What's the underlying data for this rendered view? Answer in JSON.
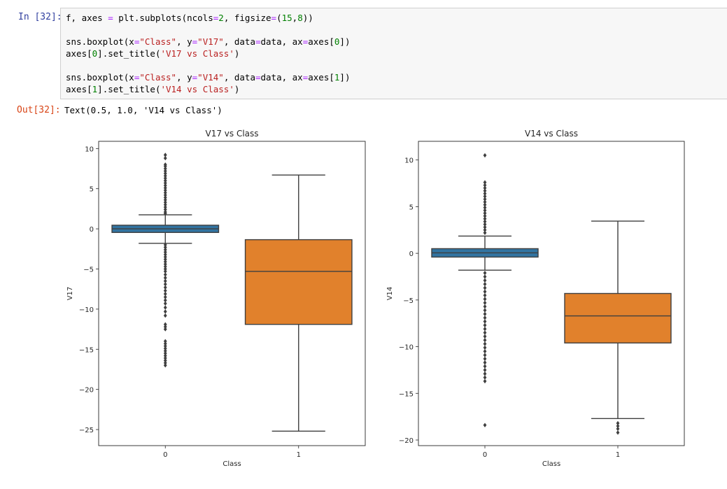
{
  "cell": {
    "in_prompt": "In [32]:",
    "out_prompt": "Out[32]:",
    "code_lines": [
      "f, axes = plt.subplots(ncols=2, figsize=(15,8))",
      "",
      "sns.boxplot(x=\"Class\", y=\"V17\", data=data, ax=axes[0])",
      "axes[0].set_title('V17 vs Class')",
      "",
      "sns.boxplot(x=\"Class\", y=\"V14\", data=data, ax=axes[1])",
      "axes[1].set_title('V14 vs Class')"
    ],
    "output_text": "Text(0.5, 1.0, 'V14 vs Class')"
  },
  "colors": {
    "class0": "#3274a1",
    "class1": "#e1812c",
    "line": "#3f3f3f"
  },
  "chart_data": [
    {
      "type": "box",
      "title": "V17 vs Class",
      "xlabel": "Class",
      "ylabel": "V17",
      "categories": [
        "0",
        "1"
      ],
      "ylim": [
        -27,
        10.9
      ],
      "yticks": [
        10,
        5,
        0,
        -5,
        -10,
        -15,
        -20,
        -25
      ],
      "ytick_labels": [
        "10",
        "5",
        "0",
        "−5",
        "−10",
        "−15",
        "−20",
        "−25"
      ],
      "boxes": [
        {
          "category": "0",
          "whisker_low": -1.8,
          "q1": -0.45,
          "median": 0.0,
          "q3": 0.45,
          "whisker_high": 1.75,
          "outliers": [
            9.2,
            8.8,
            8.0,
            7.8,
            7.5,
            7.2,
            6.9,
            6.6,
            6.3,
            6.0,
            5.7,
            5.4,
            5.1,
            4.8,
            4.5,
            4.2,
            3.9,
            3.6,
            3.3,
            3.0,
            2.7,
            2.4,
            2.1,
            1.9,
            -2.0,
            -2.3,
            -2.6,
            -2.9,
            -3.2,
            -3.5,
            -3.8,
            -4.1,
            -4.4,
            -4.7,
            -5.0,
            -5.3,
            -5.7,
            -6.1,
            -6.5,
            -6.9,
            -7.3,
            -7.7,
            -8.1,
            -8.5,
            -8.9,
            -9.3,
            -9.8,
            -10.3,
            -10.8,
            -11.9,
            -12.2,
            -12.5,
            -14.0,
            -14.3,
            -14.6,
            -14.9,
            -15.2,
            -15.5,
            -15.8,
            -16.1,
            -16.4,
            -16.7,
            -17.0
          ]
        },
        {
          "category": "1",
          "whisker_low": -25.2,
          "q1": -11.9,
          "median": -5.3,
          "q3": -1.35,
          "whisker_high": 6.7,
          "outliers": []
        }
      ]
    },
    {
      "type": "box",
      "title": "V14 vs Class",
      "xlabel": "Class",
      "ylabel": "V14",
      "categories": [
        "0",
        "1"
      ],
      "ylim": [
        -20.6,
        12.0
      ],
      "yticks": [
        10,
        5,
        0,
        -5,
        -10,
        -15,
        -20
      ],
      "ytick_labels": [
        "10",
        "5",
        "0",
        "−5",
        "−10",
        "−15",
        "−20"
      ],
      "boxes": [
        {
          "category": "0",
          "whisker_low": -1.8,
          "q1": -0.4,
          "median": 0.05,
          "q3": 0.5,
          "whisker_high": 1.85,
          "outliers": [
            10.5,
            7.6,
            7.3,
            7.0,
            6.7,
            6.4,
            6.1,
            5.8,
            5.5,
            5.2,
            4.9,
            4.6,
            4.3,
            4.0,
            3.7,
            3.4,
            3.1,
            2.8,
            2.5,
            2.2,
            -2.1,
            -2.5,
            -2.9,
            -3.3,
            -3.7,
            -4.1,
            -4.5,
            -4.9,
            -5.3,
            -5.7,
            -6.1,
            -6.5,
            -6.9,
            -7.3,
            -7.7,
            -8.1,
            -8.5,
            -8.9,
            -9.3,
            -9.7,
            -10.1,
            -10.5,
            -10.9,
            -11.3,
            -11.7,
            -12.1,
            -12.5,
            -12.9,
            -13.3,
            -13.7,
            -18.4
          ]
        },
        {
          "category": "1",
          "whisker_low": -17.7,
          "q1": -9.6,
          "median": -6.7,
          "q3": -4.3,
          "whisker_high": 3.45,
          "outliers": [
            -18.2,
            -18.5,
            -18.8,
            -19.2
          ]
        }
      ]
    }
  ]
}
